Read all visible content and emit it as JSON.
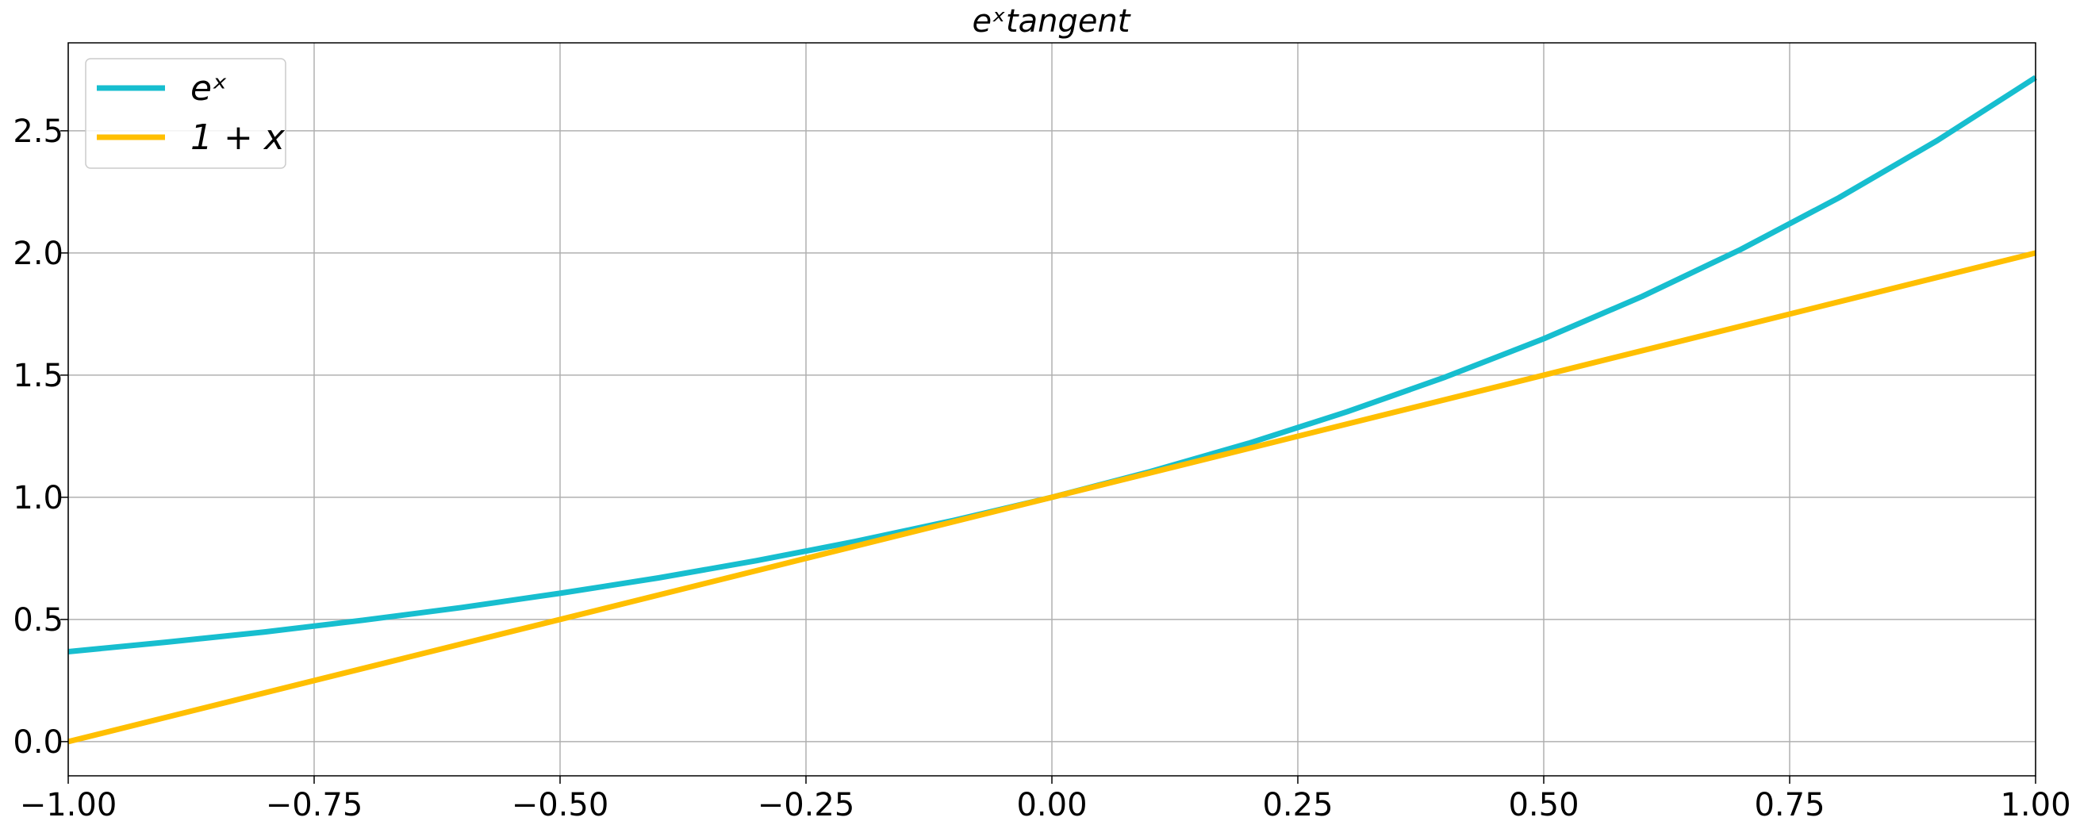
{
  "chart_data": {
    "type": "line",
    "title": "eˣtangent",
    "xlabel": "",
    "ylabel": "",
    "xlim": [
      -1.0,
      1.0
    ],
    "ylim": [
      -0.14,
      2.86
    ],
    "xticks": [
      -1.0,
      -0.75,
      -0.5,
      -0.25,
      0.0,
      0.25,
      0.5,
      0.75,
      1.0
    ],
    "xtick_labels": [
      "−1.00",
      "−0.75",
      "−0.50",
      "−0.25",
      "0.00",
      "0.25",
      "0.50",
      "0.75",
      "1.00"
    ],
    "yticks": [
      0.0,
      0.5,
      1.0,
      1.5,
      2.0,
      2.5
    ],
    "ytick_labels": [
      "0.0",
      "0.5",
      "1.0",
      "1.5",
      "2.0",
      "2.5"
    ],
    "grid": true,
    "legend_position": "top-left",
    "series": [
      {
        "name": "eˣ",
        "color": "#17becf",
        "x": [
          -1.0,
          -0.9,
          -0.8,
          -0.7,
          -0.6,
          -0.5,
          -0.4,
          -0.3,
          -0.2,
          -0.1,
          0.0,
          0.1,
          0.2,
          0.3,
          0.4,
          0.5,
          0.6,
          0.7,
          0.8,
          0.9,
          1.0
        ],
        "y": [
          0.368,
          0.407,
          0.449,
          0.497,
          0.549,
          0.607,
          0.67,
          0.741,
          0.819,
          0.905,
          1.0,
          1.105,
          1.221,
          1.35,
          1.492,
          1.649,
          1.822,
          2.014,
          2.226,
          2.46,
          2.718
        ]
      },
      {
        "name": "1 + x",
        "color": "#ffbf00",
        "x": [
          -1.0,
          1.0
        ],
        "y": [
          0.0,
          2.0
        ]
      }
    ]
  }
}
